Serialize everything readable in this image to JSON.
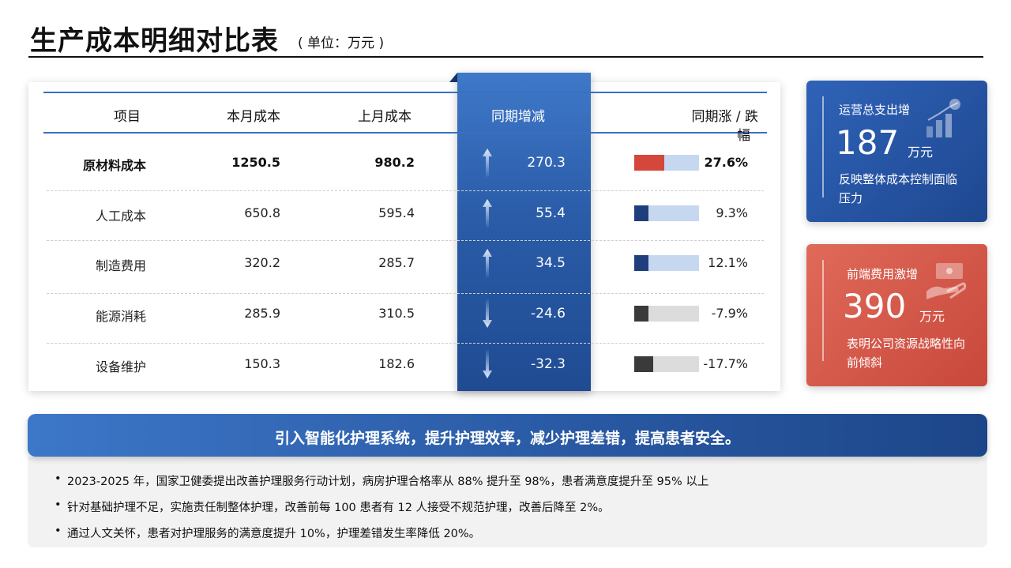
{
  "header": {
    "title": "生产成本明细对比表",
    "unit": "( 单位：万元 )"
  },
  "table": {
    "columns": [
      "项目",
      "本月成本",
      "上月成本",
      "同期增减",
      "同期涨 / 跌",
      "幅"
    ],
    "rows": [
      {
        "item": "原材料成本",
        "current": "1250.5",
        "previous": "980.2",
        "change": "270.3",
        "direction": "up",
        "pct": "27.6%",
        "pct_value": 0.276,
        "bar_color": "#d4473b",
        "bold": true
      },
      {
        "item": "人工成本",
        "current": "650.8",
        "previous": "595.4",
        "change": "55.4",
        "direction": "up",
        "pct": "9.3%",
        "pct_value": 0.093,
        "bar_color": "#1e3f7c",
        "bold": false
      },
      {
        "item": "制造费用",
        "current": "320.2",
        "previous": "285.7",
        "change": "34.5",
        "direction": "up",
        "pct": "12.1%",
        "pct_value": 0.121,
        "bar_color": "#1e3f7c",
        "bold": false
      },
      {
        "item": "能源消耗",
        "current": "285.9",
        "previous": "310.5",
        "change": "-24.6",
        "direction": "down",
        "pct": "-7.9%",
        "pct_value": -0.079,
        "bar_color": "#3a3a3a",
        "bold": false
      },
      {
        "item": "设备维护",
        "current": "150.3",
        "previous": "182.6",
        "change": "-32.3",
        "direction": "down",
        "pct": "-17.7%",
        "pct_value": -0.177,
        "bar_color": "#3a3a3a",
        "bold": false
      }
    ],
    "colors": {
      "positive_track": "#c5d8f0",
      "negative_track": "#dcdcdc",
      "highlight": "#2a5ca8"
    }
  },
  "kpis": [
    {
      "label": "运营总支出增",
      "value": "187",
      "unit": "万元",
      "desc": "反映整体成本控制面临压力",
      "icon": "growth-chart-icon",
      "color": "#2f63b8"
    },
    {
      "label": "前端费用激增",
      "value": "390",
      "unit": "万元",
      "desc": "表明公司资源战略性向前倾斜",
      "icon": "money-hand-icon",
      "color": "#d9594a"
    }
  ],
  "banner": {
    "headline": "引入智能化护理系统，提升护理效率，减少护理差错，提高患者安全。",
    "notes": [
      "2023-2025 年，国家卫健委提出改善护理服务行动计划，病房护理合格率从 88% 提升至 98%，患者满意度提升至 95% 以上",
      "针对基础护理不足，实施责任制整体护理，改善前每 100 患者有 12 人接受不规范护理，改善后降至 2%。",
      "通过人文关怀，患者对护理服务的满意度提升 10%，护理差错发生率降低 20%。"
    ]
  }
}
